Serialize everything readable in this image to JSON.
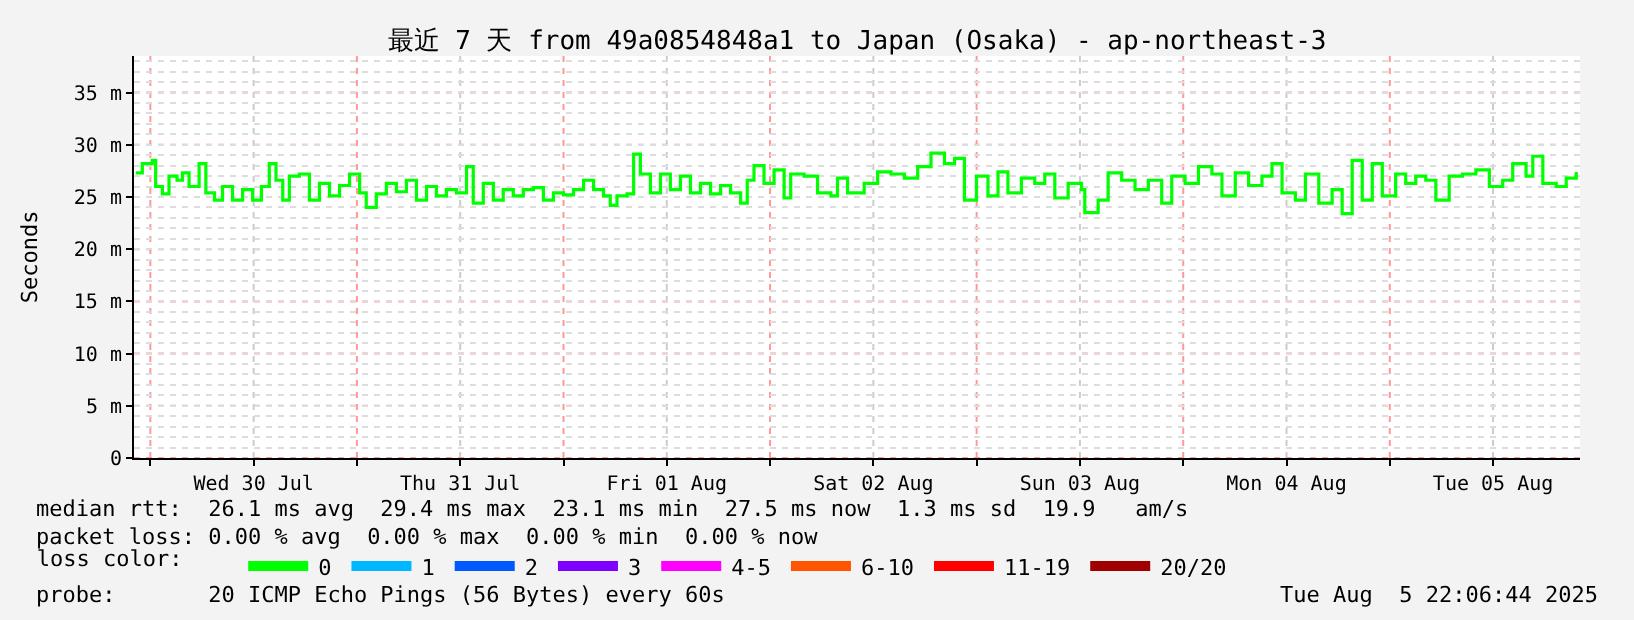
{
  "chart_data": {
    "type": "step",
    "title": "最近 7 天 from 49a0854848a1 to Japan (Osaka) - ap-northeast-3",
    "ylabel": "Seconds",
    "x": [
      "2025-07-29T22:18",
      "2025-07-29T23:04",
      "2025-07-30T00:14",
      "2025-07-30T00:37",
      "2025-07-30T01:24",
      "2025-07-30T02:10",
      "2025-07-30T03:06",
      "2025-07-30T03:44",
      "2025-07-30T04:30",
      "2025-07-30T05:40",
      "2025-07-30T06:27",
      "2025-07-30T07:27",
      "2025-07-30T08:23",
      "2025-07-30T09:33",
      "2025-07-30T10:43",
      "2025-07-30T11:53",
      "2025-07-30T12:54",
      "2025-07-30T13:49",
      "2025-07-30T14:36",
      "2025-07-30T15:23",
      "2025-07-30T16:09",
      "2025-07-30T17:19",
      "2025-07-30T18:29",
      "2025-07-30T19:39",
      "2025-07-30T20:49",
      "2025-07-30T21:59",
      "2025-07-30T23:09",
      "2025-07-31T00:19",
      "2025-07-31T01:05",
      "2025-07-31T02:15",
      "2025-07-31T03:25",
      "2025-07-31T04:35",
      "2025-07-31T05:45",
      "2025-07-31T06:55",
      "2025-07-31T08:05",
      "2025-07-31T09:14",
      "2025-07-31T10:24",
      "2025-07-31T11:34",
      "2025-07-31T12:44",
      "2025-07-31T13:31",
      "2025-07-31T14:41",
      "2025-07-31T15:51",
      "2025-07-31T17:00",
      "2025-07-31T18:10",
      "2025-07-31T19:20",
      "2025-07-31T20:30",
      "2025-07-31T21:40",
      "2025-07-31T22:50",
      "2025-08-01T00:00",
      "2025-08-01T01:10",
      "2025-08-01T02:20",
      "2025-08-01T03:30",
      "2025-08-01T04:39",
      "2025-08-01T05:26",
      "2025-08-01T06:13",
      "2025-08-01T07:23",
      "2025-08-01T08:09",
      "2025-08-01T08:56",
      "2025-08-01T10:06",
      "2025-08-01T11:16",
      "2025-08-01T12:25",
      "2025-08-01T13:35",
      "2025-08-01T14:45",
      "2025-08-01T15:55",
      "2025-08-01T17:05",
      "2025-08-01T18:15",
      "2025-08-01T19:25",
      "2025-08-01T20:35",
      "2025-08-01T21:21",
      "2025-08-01T22:08",
      "2025-08-01T23:18",
      "2025-08-02T00:28",
      "2025-08-02T01:38",
      "2025-08-02T02:24",
      "2025-08-02T03:57",
      "2025-08-02T05:31",
      "2025-08-02T07:04",
      "2025-08-02T07:50",
      "2025-08-02T09:00",
      "2025-08-02T10:56",
      "2025-08-02T12:30",
      "2025-08-02T14:03",
      "2025-08-02T15:36",
      "2025-08-02T17:09",
      "2025-08-02T18:42",
      "2025-08-02T20:16",
      "2025-08-02T21:26",
      "2025-08-02T22:35",
      "2025-08-02T23:59",
      "2025-08-03T01:19",
      "2025-08-03T02:29",
      "2025-08-03T03:38",
      "2025-08-03T05:12",
      "2025-08-03T06:45",
      "2025-08-03T07:55",
      "2025-08-03T09:05",
      "2025-08-03T10:38",
      "2025-08-03T12:11",
      "2025-08-03T12:34",
      "2025-08-03T14:07",
      "2025-08-03T15:17",
      "2025-08-03T16:51",
      "2025-08-03T18:24",
      "2025-08-03T19:57",
      "2025-08-03T21:30",
      "2025-08-03T22:40",
      "2025-08-04T00:13",
      "2025-08-04T01:46",
      "2025-08-04T03:20",
      "2025-08-04T04:30",
      "2025-08-04T06:03",
      "2025-08-04T07:36",
      "2025-08-04T09:09",
      "2025-08-04T10:19",
      "2025-08-04T11:29",
      "2025-08-04T13:02",
      "2025-08-04T14:12",
      "2025-08-04T15:45",
      "2025-08-04T17:18",
      "2025-08-04T18:28",
      "2025-08-04T19:38",
      "2025-08-04T20:48",
      "2025-08-04T21:58",
      "2025-08-04T23:08",
      "2025-08-05T00:41",
      "2025-08-05T01:51",
      "2025-08-05T03:01",
      "2025-08-05T04:11",
      "2025-08-05T05:21",
      "2025-08-05T06:54",
      "2025-08-05T08:27",
      "2025-08-05T10:00",
      "2025-08-05T11:34",
      "2025-08-05T13:07",
      "2025-08-05T14:17",
      "2025-08-05T15:50",
      "2025-08-05T16:37",
      "2025-08-05T17:47",
      "2025-08-05T19:20",
      "2025-08-05T20:30",
      "2025-08-05T21:40"
    ],
    "series": [
      {
        "name": "0",
        "color": "#00ff00",
        "values": [
          27.3,
          28.2,
          28.5,
          26.0,
          25.3,
          27.0,
          26.6,
          27.3,
          26.0,
          28.2,
          25.4,
          24.7,
          26.0,
          24.7,
          25.7,
          24.7,
          26.0,
          28.2,
          26.6,
          24.7,
          27.0,
          27.2,
          24.7,
          26.3,
          25.1,
          26.1,
          27.2,
          25.4,
          24.0,
          25.3,
          26.3,
          25.5,
          26.6,
          24.7,
          26.0,
          25.1,
          25.7,
          25.4,
          27.9,
          24.4,
          26.3,
          24.7,
          25.7,
          25.1,
          25.7,
          25.9,
          24.7,
          25.4,
          25.2,
          25.7,
          26.6,
          25.7,
          25.1,
          24.2,
          25.1,
          25.3,
          29.1,
          27.2,
          25.4,
          27.2,
          25.7,
          27.0,
          25.4,
          26.3,
          25.3,
          26.1,
          25.4,
          24.4,
          26.6,
          28.0,
          26.3,
          27.6,
          24.9,
          27.2,
          27.0,
          25.4,
          25.1,
          26.8,
          25.4,
          26.3,
          27.4,
          27.2,
          26.8,
          27.9,
          29.2,
          28.2,
          28.7,
          24.7,
          27.0,
          25.1,
          27.4,
          25.4,
          26.8,
          26.3,
          27.2,
          24.9,
          26.3,
          25.7,
          23.5,
          24.7,
          27.3,
          26.6,
          25.7,
          26.6,
          24.4,
          27.0,
          26.3,
          27.9,
          27.2,
          25.1,
          27.3,
          26.1,
          27.0,
          28.2,
          25.4,
          24.7,
          27.2,
          24.4,
          25.7,
          23.4,
          28.5,
          24.7,
          28.2,
          25.1,
          27.2,
          26.3,
          27.0,
          26.6,
          24.7,
          27.0,
          27.2,
          27.6,
          26.0,
          26.6,
          28.2,
          27.0,
          28.9,
          26.3,
          26.0,
          26.8,
          27.4
        ]
      },
      {
        "name": "1",
        "color": "#00b8ff",
        "values": [
          null,
          null,
          null,
          null,
          null,
          null,
          null,
          null,
          null,
          null,
          null,
          null,
          null,
          null,
          null,
          null,
          null,
          null,
          null,
          null,
          null,
          null,
          null,
          null,
          null,
          null,
          null,
          null,
          null,
          null,
          null,
          null,
          null,
          null,
          null,
          null,
          null,
          null,
          null,
          null,
          null,
          null,
          null,
          null,
          null,
          null,
          null,
          null,
          null,
          null,
          null,
          null,
          null,
          null,
          null,
          null,
          null,
          null,
          null,
          null,
          null,
          null,
          null,
          null,
          null,
          null,
          null,
          null,
          null,
          null,
          null,
          null,
          null,
          null,
          null,
          null,
          null,
          null,
          null,
          null,
          null,
          null,
          null,
          null,
          null,
          null,
          null,
          null,
          null,
          null,
          null,
          null,
          null,
          null,
          null,
          null,
          null,
          null,
          null,
          null,
          null,
          null,
          null,
          null,
          null,
          null,
          null,
          null,
          null,
          null,
          null,
          null,
          null,
          null,
          null,
          null,
          null,
          null,
          null,
          null,
          null,
          null,
          null,
          null,
          null,
          null,
          null,
          null,
          null,
          null,
          null,
          null,
          null,
          null,
          null,
          null,
          null,
          null,
          null,
          null,
          null
        ]
      },
      {
        "name": "2",
        "color": "#0059ff",
        "values": [
          null,
          null,
          null,
          null,
          null,
          null,
          null,
          null,
          null,
          null,
          null,
          null,
          null,
          null,
          null,
          null,
          null,
          null,
          null,
          null,
          null,
          null,
          null,
          null,
          null,
          null,
          null,
          null,
          null,
          null,
          null,
          null,
          null,
          null,
          null,
          null,
          null,
          null,
          null,
          null,
          null,
          null,
          null,
          null,
          null,
          null,
          null,
          null,
          null,
          null,
          null,
          null,
          null,
          null,
          null,
          null,
          null,
          null,
          null,
          null,
          null,
          null,
          null,
          null,
          null,
          null,
          null,
          null,
          null,
          null,
          null,
          null,
          null,
          null,
          null,
          null,
          null,
          null,
          null,
          null,
          null,
          null,
          null,
          null,
          null,
          null,
          null,
          null,
          null,
          null,
          null,
          null,
          null,
          null,
          null,
          null,
          null,
          null,
          null,
          null,
          null,
          null,
          null,
          null,
          null,
          null,
          null,
          null,
          null,
          null,
          null,
          null,
          null,
          null,
          null,
          null,
          null,
          null,
          null,
          null,
          null,
          null,
          null,
          null,
          null,
          null,
          null,
          null,
          null,
          null,
          null,
          null,
          null,
          null,
          null,
          null,
          null,
          null,
          null,
          null,
          null
        ]
      },
      {
        "name": "3",
        "color": "#7e00ff",
        "values": [
          null,
          null,
          null,
          null,
          null,
          null,
          null,
          null,
          null,
          null,
          null,
          null,
          null,
          null,
          null,
          null,
          null,
          null,
          null,
          null,
          null,
          null,
          null,
          null,
          null,
          null,
          null,
          null,
          null,
          null,
          null,
          null,
          null,
          null,
          null,
          null,
          null,
          null,
          null,
          null,
          null,
          null,
          null,
          null,
          null,
          null,
          null,
          null,
          null,
          null,
          null,
          null,
          null,
          null,
          null,
          null,
          null,
          null,
          null,
          null,
          null,
          null,
          null,
          null,
          null,
          null,
          null,
          null,
          null,
          null,
          null,
          null,
          null,
          null,
          null,
          null,
          null,
          null,
          null,
          null,
          null,
          null,
          null,
          null,
          null,
          null,
          null,
          null,
          null,
          null,
          null,
          null,
          null,
          null,
          null,
          null,
          null,
          null,
          null,
          null,
          null,
          null,
          null,
          null,
          null,
          null,
          null,
          null,
          null,
          null,
          null,
          null,
          null,
          null,
          null,
          null,
          null,
          null,
          null,
          null,
          null,
          null,
          null,
          null,
          null,
          null,
          null,
          null,
          null,
          null,
          null,
          null,
          null,
          null,
          null,
          null,
          null,
          null,
          null,
          null,
          null
        ]
      },
      {
        "name": "4-5",
        "color": "#ff00ff",
        "values": [
          null,
          null,
          null,
          null,
          null,
          null,
          null,
          null,
          null,
          null,
          null,
          null,
          null,
          null,
          null,
          null,
          null,
          null,
          null,
          null,
          null,
          null,
          null,
          null,
          null,
          null,
          null,
          null,
          null,
          null,
          null,
          null,
          null,
          null,
          null,
          null,
          null,
          null,
          null,
          null,
          null,
          null,
          null,
          null,
          null,
          null,
          null,
          null,
          null,
          null,
          null,
          null,
          null,
          null,
          null,
          null,
          null,
          null,
          null,
          null,
          null,
          null,
          null,
          null,
          null,
          null,
          null,
          null,
          null,
          null,
          null,
          null,
          null,
          null,
          null,
          null,
          null,
          null,
          null,
          null,
          null,
          null,
          null,
          null,
          null,
          null,
          null,
          null,
          null,
          null,
          null,
          null,
          null,
          null,
          null,
          null,
          null,
          null,
          null,
          null,
          null,
          null,
          null,
          null,
          null,
          null,
          null,
          null,
          null,
          null,
          null,
          null,
          null,
          null,
          null,
          null,
          null,
          null,
          null,
          null,
          null,
          null,
          null,
          null,
          null,
          null,
          null,
          null,
          null,
          null,
          null,
          null,
          null,
          null,
          null,
          null,
          null,
          null,
          null,
          null,
          null
        ]
      },
      {
        "name": "6-10",
        "color": "#ff5500",
        "values": [
          null,
          null,
          null,
          null,
          null,
          null,
          null,
          null,
          null,
          null,
          null,
          null,
          null,
          null,
          null,
          null,
          null,
          null,
          null,
          null,
          null,
          null,
          null,
          null,
          null,
          null,
          null,
          null,
          null,
          null,
          null,
          null,
          null,
          null,
          null,
          null,
          null,
          null,
          null,
          null,
          null,
          null,
          null,
          null,
          null,
          null,
          null,
          null,
          null,
          null,
          null,
          null,
          null,
          null,
          null,
          null,
          null,
          null,
          null,
          null,
          null,
          null,
          null,
          null,
          null,
          null,
          null,
          null,
          null,
          null,
          null,
          null,
          null,
          null,
          null,
          null,
          null,
          null,
          null,
          null,
          null,
          null,
          null,
          null,
          null,
          null,
          null,
          null,
          null,
          null,
          null,
          null,
          null,
          null,
          null,
          null,
          null,
          null,
          null,
          null,
          null,
          null,
          null,
          null,
          null,
          null,
          null,
          null,
          null,
          null,
          null,
          null,
          null,
          null,
          null,
          null,
          null,
          null,
          null,
          null,
          null,
          null,
          null,
          null,
          null,
          null,
          null,
          null,
          null,
          null,
          null,
          null,
          null,
          null,
          null,
          null,
          null,
          null,
          null,
          null,
          null
        ]
      },
      {
        "name": "11-19",
        "color": "#ff0000",
        "values": [
          null,
          null,
          null,
          null,
          null,
          null,
          null,
          null,
          null,
          null,
          null,
          null,
          null,
          null,
          null,
          null,
          null,
          null,
          null,
          null,
          null,
          null,
          null,
          null,
          null,
          null,
          null,
          null,
          null,
          null,
          null,
          null,
          null,
          null,
          null,
          null,
          null,
          null,
          null,
          null,
          null,
          null,
          null,
          null,
          null,
          null,
          null,
          null,
          null,
          null,
          null,
          null,
          null,
          null,
          null,
          null,
          null,
          null,
          null,
          null,
          null,
          null,
          null,
          null,
          null,
          null,
          null,
          null,
          null,
          null,
          null,
          null,
          null,
          null,
          null,
          null,
          null,
          null,
          null,
          null,
          null,
          null,
          null,
          null,
          null,
          null,
          null,
          null,
          null,
          null,
          null,
          null,
          null,
          null,
          null,
          null,
          null,
          null,
          null,
          null,
          null,
          null,
          null,
          null,
          null,
          null,
          null,
          null,
          null,
          null,
          null,
          null,
          null,
          null,
          null,
          null,
          null,
          null,
          null,
          null,
          null,
          null,
          null,
          null,
          null,
          null,
          null,
          null,
          null,
          null,
          null,
          null,
          null,
          null,
          null,
          null,
          null,
          null,
          null,
          null,
          null
        ]
      },
      {
        "name": "20/20",
        "color": "#a10000",
        "values": [
          null,
          null,
          null,
          null,
          null,
          null,
          null,
          null,
          null,
          null,
          null,
          null,
          null,
          null,
          null,
          null,
          null,
          null,
          null,
          null,
          null,
          null,
          null,
          null,
          null,
          null,
          null,
          null,
          null,
          null,
          null,
          null,
          null,
          null,
          null,
          null,
          null,
          null,
          null,
          null,
          null,
          null,
          null,
          null,
          null,
          null,
          null,
          null,
          null,
          null,
          null,
          null,
          null,
          null,
          null,
          null,
          null,
          null,
          null,
          null,
          null,
          null,
          null,
          null,
          null,
          null,
          null,
          null,
          null,
          null,
          null,
          null,
          null,
          null,
          null,
          null,
          null,
          null,
          null,
          null,
          null,
          null,
          null,
          null,
          null,
          null,
          null,
          null,
          null,
          null,
          null,
          null,
          null,
          null,
          null,
          null,
          null,
          null,
          null,
          null,
          null,
          null,
          null,
          null,
          null,
          null,
          null,
          null,
          null,
          null,
          null,
          null,
          null,
          null,
          null,
          null,
          null,
          null,
          null,
          null,
          null,
          null,
          null,
          null,
          null,
          null,
          null,
          null,
          null,
          null,
          null,
          null,
          null,
          null,
          null,
          null,
          null,
          null,
          null,
          null,
          null
        ]
      }
    ],
    "legend_title": "loss color:",
    "legend": "bottom",
    "xlim": [
      "2025-07-29T22:06",
      "2025-08-05T22:06"
    ],
    "xticks": [
      {
        "value": "2025-07-30T00:00",
        "label": null
      },
      {
        "value": "2025-07-30T12:00",
        "label": "Wed 30 Jul"
      },
      {
        "value": "2025-07-31T00:00",
        "label": null
      },
      {
        "value": "2025-07-31T12:00",
        "label": "Thu 31 Jul"
      },
      {
        "value": "2025-08-01T00:00",
        "label": null
      },
      {
        "value": "2025-08-01T12:00",
        "label": "Fri 01 Aug"
      },
      {
        "value": "2025-08-02T00:00",
        "label": null
      },
      {
        "value": "2025-08-02T12:00",
        "label": "Sat 02 Aug"
      },
      {
        "value": "2025-08-03T00:00",
        "label": null
      },
      {
        "value": "2025-08-03T12:00",
        "label": "Sun 03 Aug"
      },
      {
        "value": "2025-08-04T00:00",
        "label": null
      },
      {
        "value": "2025-08-04T12:00",
        "label": "Mon 04 Aug"
      },
      {
        "value": "2025-08-05T00:00",
        "label": null
      },
      {
        "value": "2025-08-05T12:00",
        "label": "Tue 05 Aug"
      }
    ],
    "ylim": [
      0,
      38.5
    ],
    "yticks": [
      0,
      {
        "value": 5,
        "label": "5 m"
      },
      {
        "value": 10,
        "label": "10 m"
      },
      {
        "value": 15,
        "label": "15 m"
      },
      {
        "value": 20,
        "label": "20 m"
      },
      {
        "value": 25,
        "label": "25 m"
      },
      {
        "value": 30,
        "label": "30 m"
      },
      {
        "value": 35,
        "label": "35 m"
      }
    ],
    "grid": true,
    "line_style": "solid",
    "annotations": [
      "median rtt:  26.1 ms avg  29.4 ms max  23.1 ms min  27.5 ms now  1.3 ms sd  19.9   am/s",
      "packet loss: 0.00 % avg  0.00 % max  0.00 % min  0.00 % now",
      "probe:       20 ICMP Echo Pings (56 Bytes) every 60s",
      "Tue Aug  5 22:06:44 2025"
    ]
  }
}
